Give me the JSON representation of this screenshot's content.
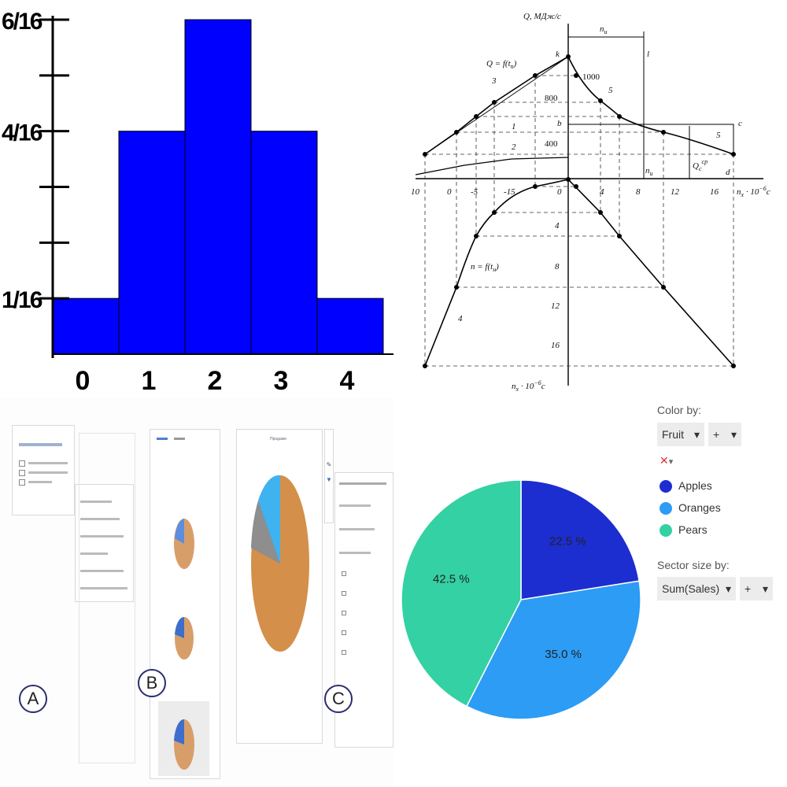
{
  "chart_data": [
    {
      "type": "bar",
      "categories": [
        "0",
        "1",
        "2",
        "3",
        "4"
      ],
      "values": [
        1,
        4,
        6,
        4,
        1
      ],
      "y_tick_labels": [
        "1/16",
        "4/16",
        "6/16"
      ],
      "y_tick_values": [
        1,
        4,
        6
      ],
      "ylim": [
        0,
        6
      ],
      "bar_color": "#0000ff",
      "title": "",
      "xlabel": "",
      "ylabel": ""
    },
    {
      "type": "line",
      "labels": {
        "y_axis": "Q, МДж/с",
        "n_i_top": "n",
        "n_i_sub": "и",
        "q_formula": "Q = f(t",
        "q_formula_sub": "п",
        "n_formula": "n = f(t",
        "n_formula_sub": "н",
        "x_axis": "n",
        "x_axis_sub": "x",
        "x_axis_tail": " · 10",
        "x_axis_exp": "−6",
        "x_axis_unit": "c",
        "bottom_axis": "n",
        "bottom_axis_sub": "x",
        "bottom_axis_tail": " · 10",
        "bottom_axis_exp": "−6",
        "bottom_axis_unit": "c",
        "qc_main": "Q",
        "qc_sub": "c",
        "qc_sup": "ср",
        "n_i_lower": "n",
        "n_i_lower_sub": "и"
      },
      "point_labels": [
        "k",
        "l",
        "b",
        "c",
        "d"
      ],
      "curve_numbers": [
        "1",
        "2",
        "3",
        "4",
        "5",
        "5"
      ],
      "q_ticks": [
        "1000",
        "800",
        "400"
      ],
      "x_ticks_top": [
        "10",
        "0",
        "-5",
        "-15",
        "0",
        "4",
        "8",
        "12",
        "16"
      ],
      "x_ticks_bottom": [
        "4",
        "8",
        "12",
        "16"
      ]
    },
    {
      "type": "pie",
      "title": "",
      "series": [
        {
          "name": "Apples",
          "value": 22.5,
          "label": "22.5 %",
          "color": "#1c2ecf"
        },
        {
          "name": "Oranges",
          "value": 35.0,
          "label": "35.0 %",
          "color": "#2c9cf5"
        },
        {
          "name": "Pears",
          "value": 42.5,
          "label": "42.5 %",
          "color": "#33d1a3"
        }
      ],
      "legend_position": "right"
    }
  ],
  "steps": {
    "a_label": "A",
    "b_label": "B",
    "c_label": "C",
    "c_chart_title": "Продажи"
  },
  "pie_controls": {
    "color_by_label": "Color by:",
    "color_by_value": "Fruit",
    "plus": "+",
    "caret": "▾",
    "sector_size_label": "Sector size by:",
    "sector_size_value": "Sum(Sales)"
  },
  "icons": [
    "chevron-down-icon",
    "color-palette-icon",
    "pencil-icon",
    "filter-icon",
    "brush-icon"
  ]
}
